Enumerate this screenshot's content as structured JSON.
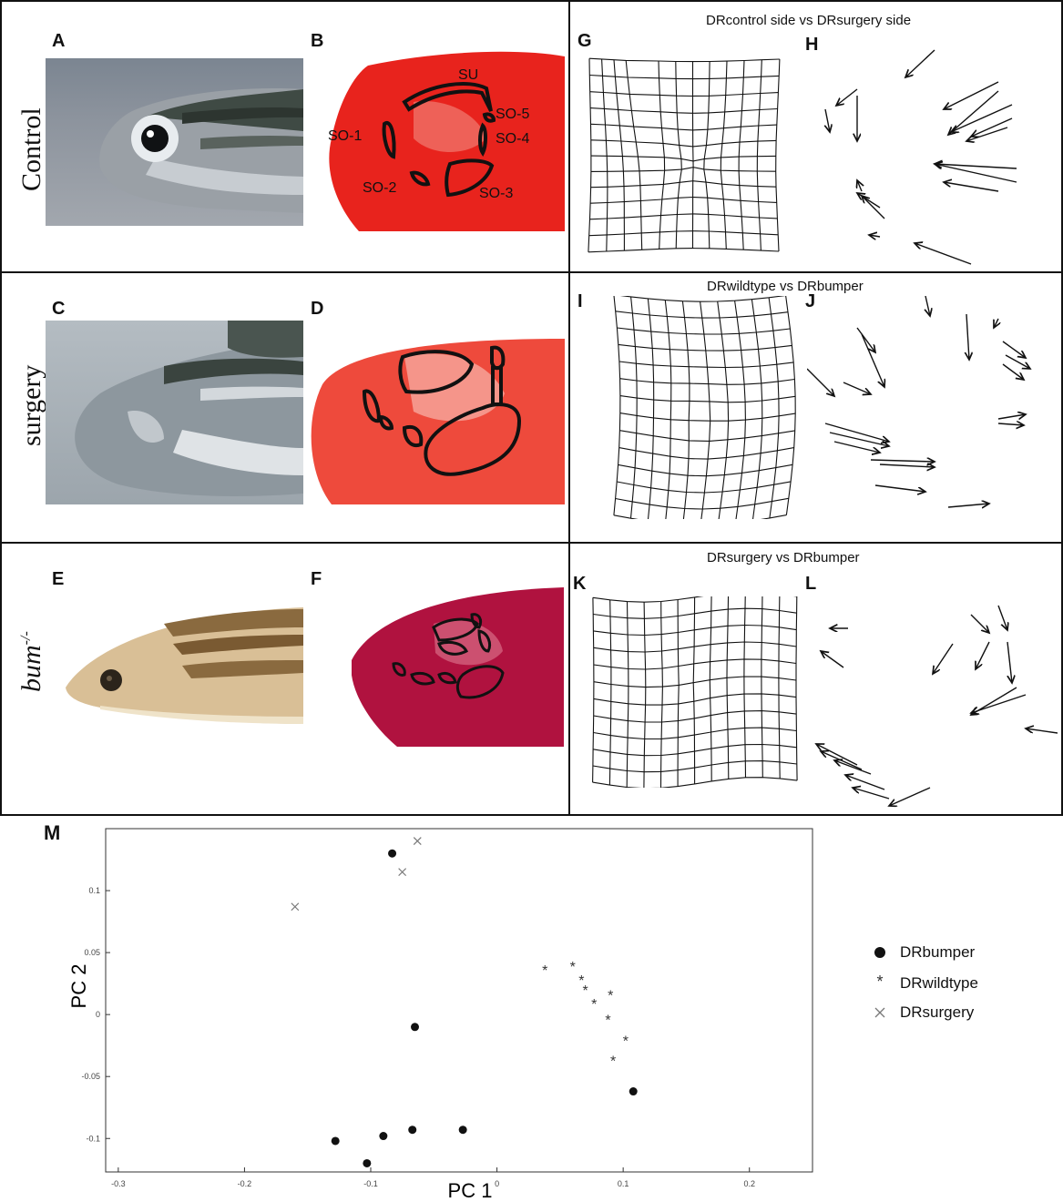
{
  "panels": {
    "A": "A",
    "B": "B",
    "C": "C",
    "D": "D",
    "E": "E",
    "F": "F",
    "G": "G",
    "H": "H",
    "I": "I",
    "J": "J",
    "K": "K",
    "L": "L",
    "M": "M"
  },
  "row_labels": {
    "control": "Control",
    "surgery": "surgery",
    "bumper_base": "bum",
    "bumper_sup": "-/-"
  },
  "bones": {
    "su": "SU",
    "so1": "SO-1",
    "so2": "SO-2",
    "so3": "SO-3",
    "so4": "SO-4",
    "so5": "SO-5"
  },
  "comparison_titles": {
    "gh": "DRcontrol side vs DRsurgery side",
    "ij": "DRwildtype vs DRbumper",
    "kl": "DRsurgery vs DRbumper"
  },
  "colors": {
    "stain_red": "#e8231d",
    "stain_bumper": "#b0123f",
    "outline": "#111111"
  },
  "chart_data": {
    "type": "scatter",
    "xlabel": "PC 1",
    "ylabel": "PC 2",
    "xlim": [
      -0.31,
      0.25
    ],
    "ylim": [
      -0.127,
      0.15
    ],
    "xticks": [
      -0.3,
      -0.2,
      -0.1,
      0,
      0.1,
      0.2
    ],
    "xtick_labels": [
      "-0.3",
      "-0.2",
      "-0.1",
      "0",
      "0.1",
      "0.2"
    ],
    "yticks": [
      0.1,
      0.05,
      0,
      -0.05,
      -0.1
    ],
    "ytick_labels": [
      "0.1",
      "0.05",
      "0",
      "-0.05",
      "-0.1"
    ],
    "legend_position": "right",
    "series": [
      {
        "name": "DRbumper",
        "marker": "circle",
        "points": [
          [
            -0.083,
            0.13
          ],
          [
            -0.065,
            -0.01
          ],
          [
            0.108,
            -0.062
          ],
          [
            -0.128,
            -0.102
          ],
          [
            -0.09,
            -0.098
          ],
          [
            -0.067,
            -0.093
          ],
          [
            -0.027,
            -0.093
          ],
          [
            -0.103,
            -0.12
          ]
        ]
      },
      {
        "name": "DRwildtype",
        "marker": "star",
        "points": [
          [
            0.038,
            0.036
          ],
          [
            0.06,
            0.039
          ],
          [
            0.067,
            0.028
          ],
          [
            0.07,
            0.02
          ],
          [
            0.077,
            0.009
          ],
          [
            0.09,
            0.016
          ],
          [
            0.088,
            -0.004
          ],
          [
            0.102,
            -0.021
          ],
          [
            0.092,
            -0.037
          ]
        ]
      },
      {
        "name": "DRsurgery",
        "marker": "x",
        "points": [
          [
            -0.063,
            0.14
          ],
          [
            -0.075,
            0.115
          ],
          [
            -0.16,
            0.087
          ]
        ]
      }
    ]
  }
}
